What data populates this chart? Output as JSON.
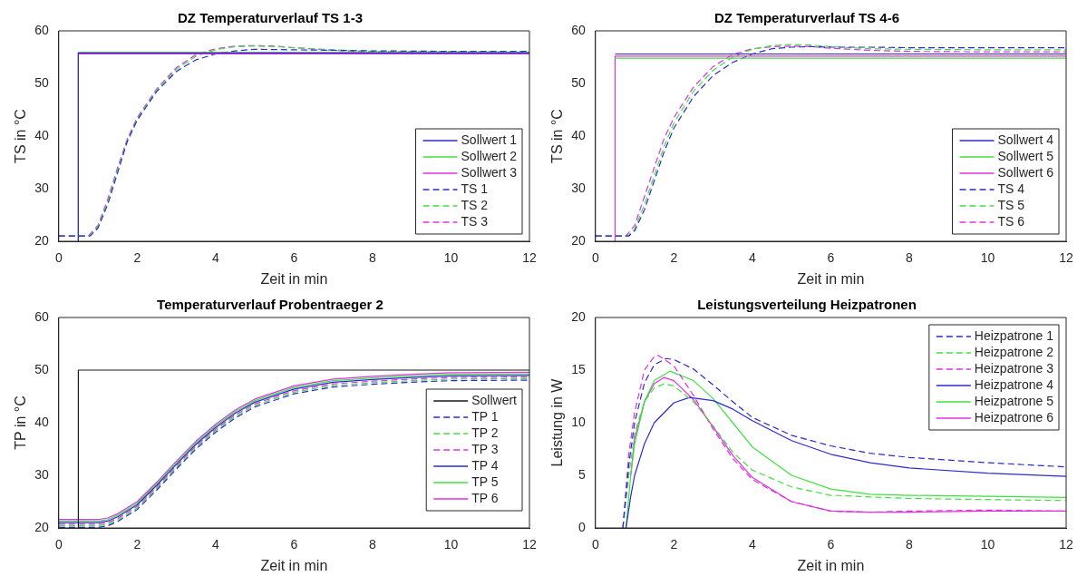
{
  "chart_data": [
    {
      "type": "line",
      "title": "DZ Temperaturverlauf TS 1-3",
      "xlabel": "Zeit in min",
      "ylabel": "TS in °C",
      "xlim": [
        0,
        12
      ],
      "ylim": [
        20,
        60
      ],
      "xticks": [
        0,
        2,
        4,
        6,
        8,
        10,
        12
      ],
      "yticks": [
        20,
        30,
        40,
        50,
        60
      ],
      "legend": "bottom right",
      "series": [
        {
          "name": "Sollwert 1",
          "color": "#2a2ad0",
          "line_style": "solid",
          "x": [
            0.5,
            0.5,
            12
          ],
          "values": [
            20,
            55.8,
            55.8
          ]
        },
        {
          "name": "Sollwert 2",
          "color": "#40e040",
          "line_style": "solid",
          "x": [
            0.5,
            0.5,
            12
          ],
          "values": [
            20,
            55.9,
            55.9
          ]
        },
        {
          "name": "Sollwert 3",
          "color": "#e030e0",
          "line_style": "solid",
          "x": [
            0.5,
            0.5,
            12
          ],
          "values": [
            20,
            55.6,
            55.6
          ]
        },
        {
          "name": "TS 1",
          "color": "#2a2ad0",
          "line_style": "dashed",
          "x": [
            0,
            0.8,
            1,
            1.25,
            1.5,
            1.75,
            2,
            2.5,
            3,
            3.5,
            4,
            4.5,
            5,
            6,
            8,
            10,
            12
          ],
          "values": [
            21,
            21,
            22.5,
            27,
            33,
            39,
            43,
            48.5,
            52.3,
            54.5,
            55.6,
            56.2,
            56.5,
            56.4,
            56.2,
            56.1,
            56.1
          ]
        },
        {
          "name": "TS 2",
          "color": "#40e040",
          "line_style": "dashed",
          "x": [
            0,
            0.78,
            1,
            1.25,
            1.5,
            1.75,
            2,
            2.5,
            3,
            3.5,
            4,
            4.5,
            5,
            5.5,
            6,
            7,
            8,
            10,
            12
          ],
          "values": [
            21,
            21,
            22.8,
            27.5,
            33.5,
            39.2,
            43.2,
            48.8,
            52.7,
            55.2,
            56.4,
            57,
            57.1,
            57,
            56.8,
            56.4,
            56.1,
            56.1,
            56
          ]
        },
        {
          "name": "TS 3",
          "color": "#e030e0",
          "line_style": "dashed",
          "x": [
            0,
            0.75,
            1,
            1.25,
            1.5,
            1.75,
            2,
            2.5,
            3,
            3.5,
            4,
            4.5,
            5,
            5.5,
            6,
            7,
            8,
            10,
            12
          ],
          "values": [
            21,
            21,
            23,
            28,
            34,
            39.5,
            43.5,
            49,
            53,
            55.5,
            56.6,
            57.1,
            57.2,
            57.1,
            56.8,
            56.3,
            56,
            56,
            55.9
          ]
        }
      ]
    },
    {
      "type": "line",
      "title": "DZ Temperaturverlauf TS 4-6",
      "xlabel": "Zeit in min",
      "ylabel": "TS in °C",
      "xlim": [
        0,
        12
      ],
      "ylim": [
        20,
        60
      ],
      "xticks": [
        0,
        2,
        4,
        6,
        8,
        10,
        12
      ],
      "yticks": [
        20,
        30,
        40,
        50,
        60
      ],
      "legend": "bottom right",
      "series": [
        {
          "name": "Sollwert 4",
          "color": "#2a2ad0",
          "line_style": "solid",
          "x": [
            0.5,
            12
          ],
          "values": [
            55.6,
            55.6
          ]
        },
        {
          "name": "Sollwert 5",
          "color": "#40e040",
          "line_style": "solid",
          "x": [
            0.5,
            12
          ],
          "values": [
            54.8,
            54.8
          ]
        },
        {
          "name": "Sollwert 6",
          "color": "#e030e0",
          "line_style": "solid",
          "x": [
            0.5,
            0.5,
            12
          ],
          "values": [
            20,
            55.2,
            55.2
          ]
        },
        {
          "name": "TS 4",
          "color": "#2a2ad0",
          "line_style": "dashed",
          "x": [
            0,
            0.85,
            1,
            1.25,
            1.5,
            1.75,
            2,
            2.5,
            3,
            3.5,
            4,
            4.5,
            5,
            5.5,
            6,
            7,
            8,
            10,
            12
          ],
          "values": [
            21,
            21,
            22,
            26,
            31.5,
            37,
            41.5,
            47.5,
            51.5,
            54,
            55.6,
            56.6,
            56.9,
            57,
            56.9,
            56.9,
            56.8,
            56.8,
            56.8
          ]
        },
        {
          "name": "TS 5",
          "color": "#40e040",
          "line_style": "dashed",
          "x": [
            0,
            0.82,
            1,
            1.25,
            1.5,
            1.75,
            2,
            2.5,
            3,
            3.5,
            4,
            4.5,
            5,
            5.5,
            6,
            7,
            8,
            10,
            12
          ],
          "values": [
            21,
            21,
            22.3,
            27,
            32.5,
            38,
            42.5,
            48.5,
            52.5,
            55,
            56.5,
            57.2,
            57.4,
            57.3,
            57,
            56.6,
            56.5,
            56.4,
            56.4
          ]
        },
        {
          "name": "TS 6",
          "color": "#e030e0",
          "line_style": "dashed",
          "x": [
            0,
            0.78,
            1,
            1.25,
            1.5,
            1.75,
            2,
            2.5,
            3,
            3.5,
            4,
            4.5,
            5,
            5.5,
            6,
            7,
            8,
            10,
            12
          ],
          "values": [
            21,
            21,
            23,
            28.5,
            34,
            39.5,
            43.5,
            49.3,
            53.2,
            55.5,
            56.6,
            57,
            57.1,
            57,
            56.7,
            56.3,
            56.1,
            56,
            56
          ]
        }
      ]
    },
    {
      "type": "line",
      "title": "Temperaturverlauf Probentraeger 2",
      "xlabel": "Zeit in min",
      "ylabel": "TP in °C",
      "xlim": [
        0,
        12
      ],
      "ylim": [
        20,
        60
      ],
      "xticks": [
        0,
        2,
        4,
        6,
        8,
        10,
        12
      ],
      "yticks": [
        20,
        30,
        40,
        50,
        60
      ],
      "legend": "right",
      "series": [
        {
          "name": "Sollwert",
          "color": "#1a1a1a",
          "line_style": "solid",
          "x": [
            0.5,
            0.5,
            12
          ],
          "values": [
            20,
            50,
            50
          ]
        },
        {
          "name": "TP 1",
          "color": "#2a2ad0",
          "line_style": "dashed",
          "x": [
            0,
            1,
            1.25,
            1.5,
            2,
            2.5,
            3,
            3.5,
            4,
            4.5,
            5,
            6,
            7,
            8,
            9,
            10,
            12
          ],
          "values": [
            20.1,
            20.1,
            20.4,
            21.2,
            23.5,
            27.2,
            31.2,
            35,
            38.2,
            40.9,
            43,
            45.5,
            46.8,
            47.3,
            47.7,
            48,
            48.1
          ]
        },
        {
          "name": "TP 2",
          "color": "#40e040",
          "line_style": "dashed",
          "x": [
            0,
            1,
            1.25,
            1.5,
            2,
            2.5,
            3,
            3.5,
            4,
            4.5,
            5,
            6,
            7,
            8,
            9,
            10,
            12
          ],
          "values": [
            20.4,
            20.4,
            20.7,
            21.5,
            23.8,
            27.5,
            31.5,
            35.3,
            38.5,
            41.2,
            43.3,
            45.8,
            47.1,
            47.6,
            48,
            48.3,
            48.4
          ]
        },
        {
          "name": "TP 3",
          "color": "#e030e0",
          "line_style": "dashed",
          "x": [
            0,
            1,
            1.25,
            1.5,
            2,
            2.5,
            3,
            3.5,
            4,
            4.5,
            5,
            6,
            7,
            8,
            9,
            10,
            12
          ],
          "values": [
            20.7,
            20.7,
            21,
            21.8,
            24.1,
            27.8,
            31.8,
            35.6,
            38.8,
            41.5,
            43.6,
            46.1,
            47.4,
            47.9,
            48.3,
            48.6,
            48.7
          ]
        },
        {
          "name": "TP 4",
          "color": "#2a2ad0",
          "line_style": "solid",
          "x": [
            0,
            1,
            1.25,
            1.5,
            2,
            2.5,
            3,
            3.5,
            4,
            4.5,
            5,
            6,
            7,
            8,
            9,
            10,
            12
          ],
          "values": [
            21,
            21,
            21.3,
            22.1,
            24.4,
            28.1,
            32.1,
            35.9,
            39.1,
            41.8,
            43.9,
            46.4,
            47.7,
            48.2,
            48.6,
            48.9,
            49
          ]
        },
        {
          "name": "TP 5",
          "color": "#40e040",
          "line_style": "solid",
          "x": [
            0,
            1,
            1.25,
            1.5,
            2,
            2.5,
            3,
            3.5,
            4,
            4.5,
            5,
            6,
            7,
            8,
            9,
            10,
            12
          ],
          "values": [
            21.3,
            21.3,
            21.6,
            22.4,
            24.7,
            28.4,
            32.4,
            36.2,
            39.4,
            42.1,
            44.2,
            46.7,
            48,
            48.5,
            48.9,
            49.2,
            49.3
          ]
        },
        {
          "name": "TP 6",
          "color": "#e030e0",
          "line_style": "solid",
          "x": [
            0,
            1,
            1.25,
            1.5,
            2,
            2.5,
            3,
            3.5,
            4,
            4.5,
            5,
            6,
            7,
            8,
            9,
            10,
            12
          ],
          "values": [
            21.6,
            21.6,
            21.9,
            22.7,
            25,
            28.7,
            32.7,
            36.5,
            39.7,
            42.4,
            44.5,
            47,
            48.3,
            48.8,
            49.2,
            49.5,
            49.6
          ]
        }
      ]
    },
    {
      "type": "line",
      "title": "Leistungsverteilung Heizpatronen",
      "xlabel": "Zeit in min",
      "ylabel": "Leistung in W",
      "xlim": [
        0,
        12
      ],
      "ylim": [
        0,
        20
      ],
      "xticks": [
        0,
        2,
        4,
        6,
        8,
        10,
        12
      ],
      "yticks": [
        0,
        5,
        10,
        15,
        20
      ],
      "legend": "top right",
      "series": [
        {
          "name": "Heizpatrone 1",
          "color": "#2a2ad0",
          "line_style": "dashed",
          "x": [
            0.7,
            0.85,
            1,
            1.25,
            1.5,
            1.8,
            2,
            2.5,
            3,
            3.5,
            4,
            5,
            6,
            7,
            8,
            10,
            12
          ],
          "values": [
            0,
            6,
            10,
            13.8,
            15.5,
            16.1,
            16,
            15.1,
            13.6,
            12,
            10.5,
            8.8,
            7.8,
            7.1,
            6.7,
            6.2,
            5.8
          ]
        },
        {
          "name": "Heizpatrone 2",
          "color": "#40e040",
          "line_style": "dashed",
          "x": [
            0.7,
            0.85,
            1,
            1.25,
            1.5,
            1.75,
            2,
            2.5,
            3,
            3.5,
            4,
            5,
            6,
            8,
            10,
            12
          ],
          "values": [
            0,
            5,
            9,
            12,
            13.3,
            13.7,
            13.5,
            12,
            9.7,
            7.2,
            5.5,
            3.9,
            3.1,
            2.8,
            2.7,
            2.6
          ]
        },
        {
          "name": "Heizpatrone 3",
          "color": "#e030e0",
          "line_style": "dashed",
          "x": [
            0.7,
            0.85,
            1,
            1.25,
            1.5,
            1.6,
            2,
            2.5,
            3,
            3.5,
            4,
            5,
            6,
            7,
            8,
            10,
            12
          ],
          "values": [
            0,
            7,
            11,
            15,
            16.3,
            16.4,
            15.4,
            12.6,
            9.4,
            6.6,
            4.6,
            2.5,
            1.6,
            1.5,
            1.6,
            1.7,
            1.6
          ]
        },
        {
          "name": "Heizpatrone 4",
          "color": "#2a2ad0",
          "line_style": "solid",
          "x": [
            0.78,
            0.9,
            1,
            1.25,
            1.5,
            2,
            2.4,
            3,
            3.5,
            4,
            5,
            6,
            7,
            8,
            10,
            12
          ],
          "values": [
            0,
            3,
            5,
            8,
            10,
            11.9,
            12.4,
            12.1,
            11.3,
            10.2,
            8.3,
            7,
            6.2,
            5.7,
            5.2,
            4.9
          ]
        },
        {
          "name": "Heizpatrone 5",
          "color": "#40e040",
          "line_style": "solid",
          "x": [
            0.78,
            0.9,
            1,
            1.25,
            1.5,
            1.9,
            2.5,
            3,
            3.5,
            4,
            5,
            6,
            7,
            8,
            10,
            12
          ],
          "values": [
            0,
            5,
            8,
            12,
            14,
            14.9,
            14,
            12.3,
            10,
            7.7,
            5,
            3.7,
            3.2,
            3.1,
            3,
            2.9
          ]
        },
        {
          "name": "Heizpatrone 6",
          "color": "#e030e0",
          "line_style": "solid",
          "x": [
            0.9,
            1,
            1.25,
            1.5,
            1.75,
            2,
            2.5,
            3,
            3.5,
            4,
            5,
            6,
            7,
            8,
            10,
            12
          ],
          "values": [
            5,
            8.5,
            12,
            13.7,
            14.3,
            14,
            12.2,
            9.6,
            6.9,
            4.8,
            2.5,
            1.6,
            1.5,
            1.5,
            1.6,
            1.6
          ]
        }
      ]
    }
  ]
}
